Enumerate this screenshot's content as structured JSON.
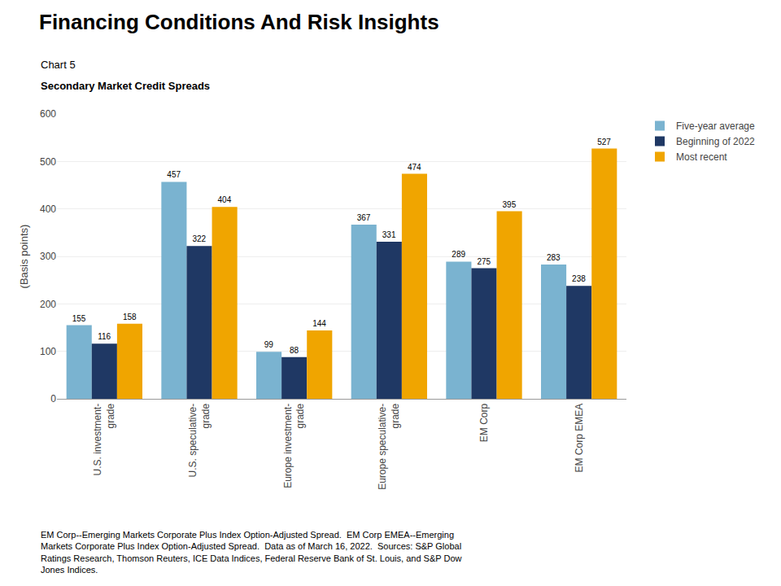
{
  "chart_data": {
    "type": "bar",
    "title": "Financing Conditions And Risk Insights",
    "chart_label": "Chart 5",
    "subtitle": "Secondary Market Credit Spreads",
    "ylabel": "(Basis points)",
    "categories": [
      "U.S. investment-\ngrade",
      "U.S. speculative-\ngrade",
      "Europe investment-\ngrade",
      "Europe speculative-\ngrade",
      "EM Corp",
      "EM Corp EMEA"
    ],
    "series": [
      {
        "name": "Five-year average",
        "color": "#7ab3d0",
        "values": [
          155,
          457,
          99,
          367,
          289,
          283
        ]
      },
      {
        "name": "Beginning of 2022",
        "color": "#1f3864",
        "values": [
          116,
          322,
          88,
          331,
          275,
          238
        ]
      },
      {
        "name": "Most recent",
        "color": "#f0a500",
        "values": [
          158,
          404,
          144,
          474,
          395,
          527
        ]
      }
    ],
    "ylim": [
      0,
      600
    ],
    "yticks": [
      0,
      100,
      200,
      300,
      400,
      500,
      600
    ],
    "grid": true,
    "legend": "right",
    "data_labels": true,
    "footnote": [
      "EM Corp--Emerging Markets Corporate Plus Index Option-Adjusted Spread.  EM Corp EMEA--Emerging",
      "Markets Corporate Plus Index Option-Adjusted Spread.  Data as of March 16, 2022.  Sources: S&P Global",
      "Ratings Research, Thomson Reuters, ICE Data Indices, Federal Reserve Bank of St. Louis, and S&P Dow",
      "Jones Indices."
    ]
  }
}
